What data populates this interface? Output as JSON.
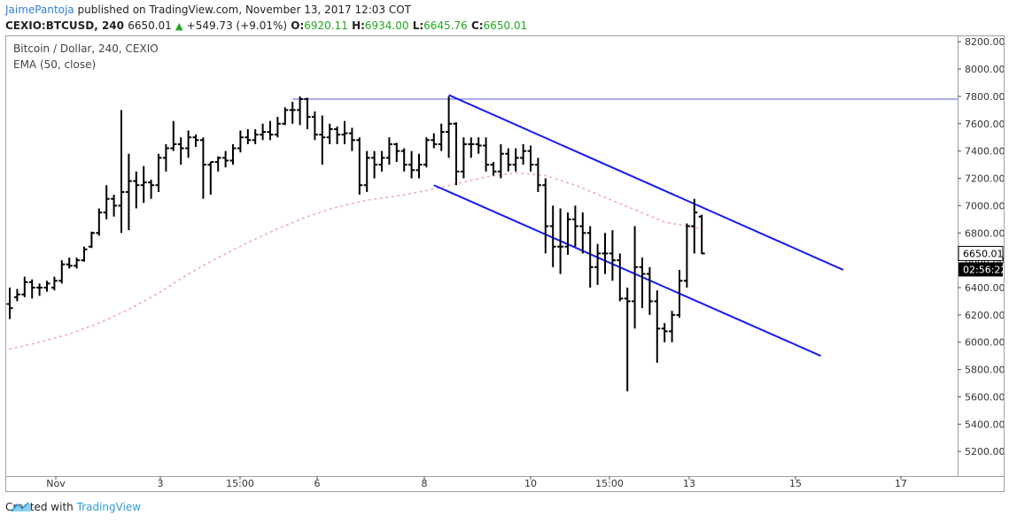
{
  "header": {
    "author": "JaimePantoja",
    "published": "published on TradingView.com, November 13, 2017 12:03 COT",
    "symbol": "CEXIO:BTCUSD, 240",
    "last": "6650.01",
    "change_arrow": "▲",
    "change": "+549.73 (+9.01%)",
    "o_label": "O:",
    "o_val": "6920.11",
    "h_label": "H:",
    "h_val": "6934.00",
    "l_label": "L:",
    "l_val": "6645.76",
    "c_label": "C:",
    "c_val": "6650.01"
  },
  "footer": {
    "created": "Created with",
    "brand": "TradingView"
  },
  "chart_data": {
    "type": "ohlc",
    "legend": [
      "Bitcoin / Dollar, 240, CEXIO",
      "EMA (50, close)"
    ],
    "y_ticks": [
      "8200.00",
      "8000.00",
      "7800.00",
      "7600.00",
      "7400.00",
      "7200.00",
      "7000.00",
      "6800.00",
      "6600.00",
      "6400.00",
      "6200.00",
      "6000.00",
      "5800.00",
      "5600.00",
      "5400.00",
      "5200.00"
    ],
    "x_ticks": [
      "Nov",
      "3",
      "15:00",
      "6",
      "8",
      "10",
      "15:00",
      "13",
      "15",
      "17"
    ],
    "ylim": [
      5020,
      8240
    ],
    "price_label": "6650.01",
    "countdown_label": "02:56:22",
    "colors": {
      "bars": "#000000",
      "channel": "#1a1aee",
      "resistance": "#5b5bdd",
      "ema": "#f3a6b3",
      "price_tag": "#000000"
    },
    "resistance_level": 7780,
    "channel_upper": {
      "from": [
        59,
        7810
      ],
      "to": [
        112,
        6530
      ]
    },
    "channel_lower": {
      "from": [
        57,
        7150
      ],
      "to": [
        109,
        5900
      ]
    },
    "bars": [
      [
        0,
        6280,
        6400,
        6170,
        6250
      ],
      [
        1,
        6330,
        6390,
        6300,
        6350
      ],
      [
        2,
        6350,
        6480,
        6330,
        6440
      ],
      [
        3,
        6440,
        6460,
        6320,
        6400
      ],
      [
        4,
        6400,
        6430,
        6340,
        6400
      ],
      [
        5,
        6400,
        6450,
        6370,
        6430
      ],
      [
        6,
        6400,
        6480,
        6380,
        6450
      ],
      [
        7,
        6450,
        6600,
        6430,
        6570
      ],
      [
        8,
        6570,
        6620,
        6540,
        6560
      ],
      [
        9,
        6560,
        6620,
        6540,
        6600
      ],
      [
        10,
        6600,
        6700,
        6590,
        6680
      ],
      [
        11,
        6700,
        6810,
        6690,
        6800
      ],
      [
        12,
        6800,
        6980,
        6780,
        6950
      ],
      [
        13,
        6950,
        7150,
        6900,
        7050
      ],
      [
        14,
        7050,
        7080,
        6920,
        7000
      ],
      [
        15,
        7000,
        7700,
        6800,
        7100
      ],
      [
        16,
        7100,
        7380,
        6820,
        7180
      ],
      [
        17,
        7180,
        7250,
        6980,
        7150
      ],
      [
        18,
        7150,
        7290,
        7020,
        7170
      ],
      [
        19,
        7170,
        7190,
        7050,
        7150
      ],
      [
        20,
        7150,
        7380,
        7100,
        7350
      ],
      [
        21,
        7350,
        7450,
        7250,
        7420
      ],
      [
        22,
        7420,
        7620,
        7400,
        7450
      ],
      [
        23,
        7450,
        7500,
        7300,
        7420
      ],
      [
        24,
        7420,
        7550,
        7350,
        7500
      ],
      [
        25,
        7500,
        7520,
        7430,
        7480
      ],
      [
        26,
        7480,
        7500,
        7050,
        7300
      ],
      [
        27,
        7300,
        7320,
        7080,
        7320
      ],
      [
        28,
        7320,
        7360,
        7250,
        7350
      ],
      [
        29,
        7350,
        7400,
        7280,
        7330
      ],
      [
        30,
        7330,
        7450,
        7300,
        7420
      ],
      [
        31,
        7420,
        7550,
        7390,
        7500
      ],
      [
        32,
        7500,
        7560,
        7450,
        7480
      ],
      [
        33,
        7480,
        7560,
        7450,
        7520
      ],
      [
        34,
        7520,
        7600,
        7480,
        7540
      ],
      [
        35,
        7540,
        7620,
        7480,
        7520
      ],
      [
        36,
        7520,
        7650,
        7500,
        7600
      ],
      [
        37,
        7600,
        7720,
        7590,
        7700
      ],
      [
        38,
        7700,
        7760,
        7600,
        7700
      ],
      [
        39,
        7700,
        7800,
        7590,
        7780
      ],
      [
        40,
        7780,
        7790,
        7560,
        7650
      ],
      [
        41,
        7650,
        7690,
        7480,
        7520
      ],
      [
        42,
        7520,
        7660,
        7300,
        7500
      ],
      [
        43,
        7500,
        7600,
        7450,
        7560
      ],
      [
        44,
        7560,
        7580,
        7450,
        7520
      ],
      [
        45,
        7520,
        7620,
        7450,
        7530
      ],
      [
        46,
        7530,
        7570,
        7400,
        7480
      ],
      [
        47,
        7480,
        7500,
        7080,
        7150
      ],
      [
        48,
        7150,
        7400,
        7100,
        7350
      ],
      [
        49,
        7350,
        7400,
        7200,
        7300
      ],
      [
        50,
        7300,
        7400,
        7250,
        7350
      ],
      [
        51,
        7350,
        7500,
        7300,
        7450
      ],
      [
        52,
        7450,
        7460,
        7320,
        7400
      ],
      [
        53,
        7400,
        7420,
        7250,
        7300
      ],
      [
        54,
        7300,
        7400,
        7200,
        7260
      ],
      [
        55,
        7260,
        7380,
        7200,
        7300
      ],
      [
        56,
        7300,
        7500,
        7280,
        7480
      ],
      [
        57,
        7480,
        7530,
        7420,
        7450
      ],
      [
        58,
        7450,
        7600,
        7400,
        7540
      ],
      [
        59,
        7540,
        7800,
        7350,
        7600
      ],
      [
        60,
        7600,
        7610,
        7150,
        7250
      ],
      [
        61,
        7250,
        7500,
        7200,
        7450
      ],
      [
        62,
        7450,
        7500,
        7350,
        7450
      ],
      [
        63,
        7450,
        7500,
        7380,
        7440
      ],
      [
        64,
        7440,
        7500,
        7250,
        7300
      ],
      [
        65,
        7300,
        7320,
        7220,
        7250
      ],
      [
        66,
        7250,
        7450,
        7200,
        7380
      ],
      [
        67,
        7380,
        7420,
        7250,
        7300
      ],
      [
        68,
        7300,
        7420,
        7250,
        7350
      ],
      [
        69,
        7350,
        7450,
        7300,
        7400
      ],
      [
        70,
        7400,
        7440,
        7250,
        7300
      ],
      [
        71,
        7300,
        7350,
        7100,
        7150
      ],
      [
        72,
        7150,
        7200,
        6650,
        6850
      ],
      [
        73,
        6850,
        7000,
        6550,
        6700
      ],
      [
        74,
        6700,
        6980,
        6500,
        6700
      ],
      [
        75,
        6700,
        6950,
        6640,
        6900
      ],
      [
        76,
        6900,
        7000,
        6700,
        6850
      ],
      [
        77,
        6850,
        6950,
        6650,
        6800
      ],
      [
        78,
        6800,
        6850,
        6400,
        6550
      ],
      [
        79,
        6550,
        6720,
        6420,
        6650
      ],
      [
        80,
        6650,
        6800,
        6500,
        6650
      ],
      [
        81,
        6650,
        6820,
        6450,
        6600
      ],
      [
        82,
        6600,
        6650,
        6300,
        6320
      ],
      [
        83,
        6320,
        6400,
        5640,
        6300
      ],
      [
        84,
        6300,
        6850,
        6100,
        6550
      ],
      [
        85,
        6550,
        6620,
        6250,
        6500
      ],
      [
        86,
        6500,
        6550,
        6200,
        6300
      ],
      [
        87,
        6300,
        6380,
        5850,
        6100
      ],
      [
        88,
        6100,
        6140,
        6000,
        6080
      ],
      [
        89,
        6080,
        6230,
        6000,
        6200
      ],
      [
        90,
        6200,
        6530,
        6180,
        6450
      ],
      [
        91,
        6450,
        6870,
        6400,
        6850
      ],
      [
        92,
        6850,
        7050,
        6650,
        6950
      ],
      [
        93,
        6920,
        6934,
        6646,
        6650
      ]
    ],
    "ema": [
      [
        0,
        5950
      ],
      [
        4,
        6000
      ],
      [
        8,
        6060
      ],
      [
        12,
        6140
      ],
      [
        16,
        6240
      ],
      [
        20,
        6360
      ],
      [
        24,
        6500
      ],
      [
        28,
        6620
      ],
      [
        32,
        6730
      ],
      [
        36,
        6830
      ],
      [
        40,
        6920
      ],
      [
        44,
        6990
      ],
      [
        48,
        7040
      ],
      [
        52,
        7070
      ],
      [
        56,
        7110
      ],
      [
        60,
        7160
      ],
      [
        64,
        7210
      ],
      [
        68,
        7240
      ],
      [
        72,
        7220
      ],
      [
        76,
        7150
      ],
      [
        80,
        7060
      ],
      [
        84,
        6970
      ],
      [
        88,
        6880
      ],
      [
        92,
        6840
      ],
      [
        93,
        6830
      ]
    ]
  }
}
